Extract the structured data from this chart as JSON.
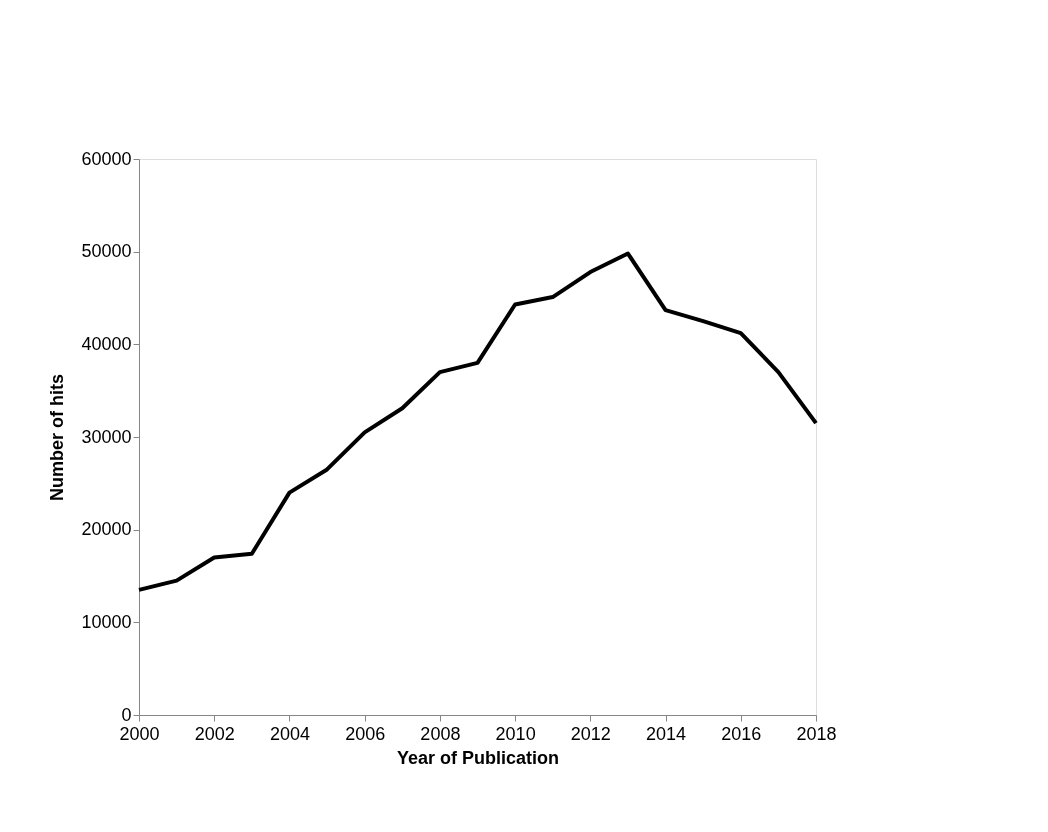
{
  "chart_data": {
    "type": "line",
    "xlabel": "Year of Publication",
    "ylabel": "Number of hits",
    "x": [
      2000,
      2001,
      2002,
      2003,
      2004,
      2005,
      2006,
      2007,
      2008,
      2009,
      2010,
      2011,
      2012,
      2013,
      2014,
      2015,
      2016,
      2017,
      2018
    ],
    "series": [
      {
        "color": "#000000",
        "values": [
          13500,
          14500,
          17000,
          17400,
          24000,
          26500,
          30500,
          33100,
          37000,
          38000,
          44300,
          45100,
          47800,
          49800,
          43700,
          42500,
          41200,
          37000,
          31500
        ]
      }
    ],
    "xlim": [
      2000,
      2018
    ],
    "xticks": [
      2000,
      2002,
      2004,
      2006,
      2008,
      2010,
      2012,
      2014,
      2016,
      2018
    ],
    "ylim": [
      0,
      60000
    ],
    "yticks": [
      0,
      10000,
      20000,
      30000,
      40000,
      50000,
      60000
    ],
    "grid": false,
    "legend": false,
    "marker": "none",
    "line_style": "solid"
  }
}
